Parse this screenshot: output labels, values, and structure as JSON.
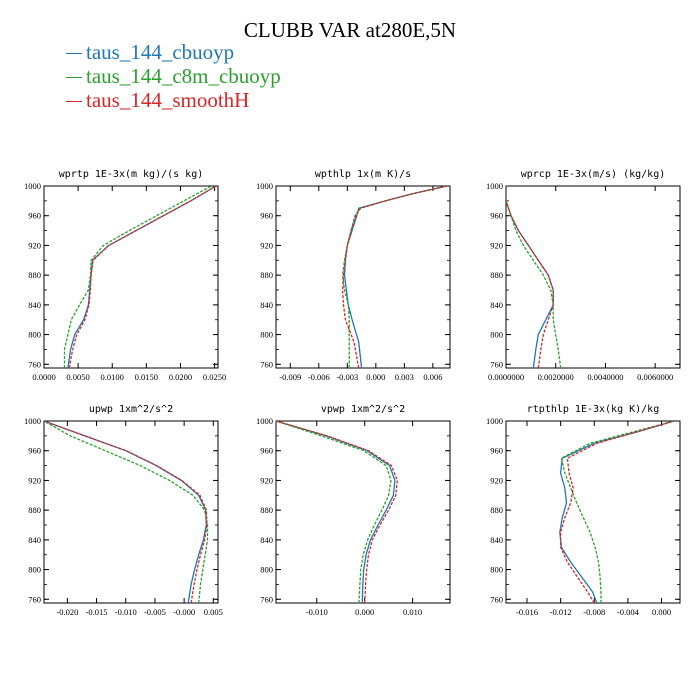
{
  "title": "CLUBB VAR at280E,5N",
  "legend": [
    {
      "label": "taus_144_cbuoyp",
      "color": "#1f77b4"
    },
    {
      "label": "taus_144_c8m_cbuoyp",
      "color": "#2ca02c"
    },
    {
      "label": "taus_144_smoothH",
      "color": "#d62728"
    }
  ],
  "chart_data": [
    {
      "type": "line",
      "title": "wprtp  1E-3x(m kg)/(s kg)",
      "xlim": [
        0.0,
        0.0255
      ],
      "ylim": [
        1000,
        755
      ],
      "xticks": [
        0.0,
        0.005,
        0.01,
        0.015,
        0.02,
        0.025
      ],
      "xticklabels": [
        "0.0000",
        "0.0050",
        "0.0100",
        "0.0150",
        "0.0200",
        "0.0250"
      ],
      "yticks": [
        760,
        800,
        840,
        880,
        920,
        960,
        1000
      ],
      "yticklabels": [
        "760",
        "800",
        "840",
        "880",
        "920",
        "960",
        "1000"
      ],
      "series": [
        {
          "color": "#1f77b4",
          "dash": false,
          "y": [
            755,
            780,
            800,
            820,
            840,
            860,
            880,
            900,
            920,
            940,
            960,
            980,
            1000
          ],
          "x": [
            0.0035,
            0.0039,
            0.0045,
            0.0058,
            0.0065,
            0.0067,
            0.0069,
            0.0071,
            0.0095,
            0.0135,
            0.0175,
            0.0215,
            0.0252
          ]
        },
        {
          "color": "#2ca02c",
          "dash": true,
          "y": [
            755,
            780,
            800,
            820,
            840,
            860,
            880,
            900,
            920,
            940,
            960,
            980,
            1000
          ],
          "x": [
            0.003,
            0.003,
            0.0035,
            0.004,
            0.0052,
            0.0065,
            0.0068,
            0.0069,
            0.0087,
            0.0125,
            0.0165,
            0.0205,
            0.0245
          ]
        },
        {
          "color": "#d62728",
          "dash": true,
          "y": [
            755,
            780,
            800,
            820,
            840,
            860,
            880,
            900,
            920,
            940,
            960,
            980,
            1000
          ],
          "x": [
            0.0037,
            0.0042,
            0.0048,
            0.006,
            0.0066,
            0.0068,
            0.0069,
            0.0072,
            0.0095,
            0.0135,
            0.0175,
            0.0215,
            0.0252
          ]
        }
      ]
    },
    {
      "type": "line",
      "title": "wpthlp  1x(m K)/s",
      "xlim": [
        -0.0105,
        0.0078
      ],
      "ylim": [
        1000,
        755
      ],
      "xticks": [
        -0.009,
        -0.006,
        -0.003,
        0.0,
        0.003,
        0.006
      ],
      "xticklabels": [
        "-0.009",
        "-0.006",
        "-0.003",
        "0.000",
        "0.003",
        "0.006"
      ],
      "yticks": [
        760,
        800,
        840,
        880,
        920,
        960,
        1000
      ],
      "yticklabels": [
        "760",
        "800",
        "840",
        "880",
        "920",
        "960",
        "1000"
      ],
      "series": [
        {
          "color": "#1f77b4",
          "dash": false,
          "y": [
            755,
            790,
            820,
            840,
            860,
            880,
            900,
            920,
            940,
            960,
            970,
            980,
            990,
            1000
          ],
          "x": [
            -0.0015,
            -0.0018,
            -0.0025,
            -0.0029,
            -0.0031,
            -0.0033,
            -0.0032,
            -0.003,
            -0.0025,
            -0.002,
            -0.0018,
            0.001,
            0.004,
            0.0075
          ]
        },
        {
          "color": "#2ca02c",
          "dash": true,
          "y": [
            755,
            790,
            820,
            840,
            860,
            880,
            900,
            920,
            940,
            960,
            970,
            980,
            990,
            1000
          ],
          "x": [
            -0.0028,
            -0.0028,
            -0.0028,
            -0.0029,
            -0.0033,
            -0.0035,
            -0.0033,
            -0.003,
            -0.0026,
            -0.0022,
            -0.0017,
            0.001,
            0.004,
            0.0075
          ]
        },
        {
          "color": "#d62728",
          "dash": true,
          "y": [
            755,
            790,
            820,
            840,
            860,
            880,
            900,
            920,
            940,
            960,
            970,
            980,
            990,
            1000
          ],
          "x": [
            -0.0018,
            -0.0023,
            -0.0032,
            -0.0034,
            -0.0035,
            -0.0034,
            -0.0032,
            -0.003,
            -0.0026,
            -0.0021,
            -0.0016,
            0.001,
            0.004,
            0.0075
          ]
        }
      ]
    },
    {
      "type": "line",
      "title": "wprcp  1E-3x(m/s) (kg/kg)",
      "xlim": [
        0.0,
        0.007
      ],
      "ylim": [
        1000,
        755
      ],
      "xticks": [
        0.0,
        0.002,
        0.004,
        0.006
      ],
      "xticklabels": [
        "0.0000000",
        "0.0020000",
        "0.0040000",
        "0.0060000"
      ],
      "yticks": [
        760,
        800,
        840,
        880,
        920,
        960,
        1000
      ],
      "yticklabels": [
        "760",
        "800",
        "840",
        "880",
        "920",
        "960",
        "1000"
      ],
      "series": [
        {
          "color": "#1f77b4",
          "dash": false,
          "y": [
            755,
            780,
            800,
            820,
            840,
            860,
            880,
            900,
            920,
            940,
            960,
            980,
            1000
          ],
          "x": [
            0.0011,
            0.0012,
            0.0013,
            0.0016,
            0.0019,
            0.0019,
            0.0017,
            0.0013,
            0.0009,
            0.0005,
            0.0002,
            0.0,
            0.0
          ]
        },
        {
          "color": "#2ca02c",
          "dash": true,
          "y": [
            755,
            780,
            800,
            820,
            840,
            860,
            880,
            900,
            920,
            940,
            960,
            980,
            1000
          ],
          "x": [
            0.0022,
            0.0021,
            0.002,
            0.0019,
            0.0019,
            0.0018,
            0.0015,
            0.0011,
            0.0007,
            0.0004,
            0.0002,
            0.0,
            0.0
          ]
        },
        {
          "color": "#d62728",
          "dash": true,
          "y": [
            755,
            780,
            800,
            820,
            840,
            860,
            880,
            900,
            920,
            940,
            960,
            980,
            1000
          ],
          "x": [
            0.0013,
            0.0014,
            0.0015,
            0.0017,
            0.0019,
            0.0019,
            0.0017,
            0.0013,
            0.0009,
            0.0005,
            0.0002,
            0.0,
            0.0
          ]
        }
      ]
    },
    {
      "type": "line",
      "title": "upwp  1xm^2/s^2",
      "xlim": [
        -0.024,
        0.0058
      ],
      "ylim": [
        1000,
        755
      ],
      "xticks": [
        -0.02,
        -0.015,
        -0.01,
        -0.005,
        0.0,
        0.005
      ],
      "xticklabels": [
        "-0.020",
        "-0.015",
        "-0.010",
        "-0.005",
        "-0.000",
        "0.005"
      ],
      "yticks": [
        760,
        800,
        840,
        880,
        920,
        960,
        1000
      ],
      "yticklabels": [
        "760",
        "800",
        "840",
        "880",
        "920",
        "960",
        "1000"
      ],
      "series": [
        {
          "color": "#1f77b4",
          "dash": false,
          "y": [
            755,
            780,
            800,
            820,
            840,
            860,
            880,
            900,
            920,
            940,
            960,
            980,
            1000
          ],
          "x": [
            0.0007,
            0.0012,
            0.0018,
            0.0025,
            0.0033,
            0.0038,
            0.0037,
            0.0025,
            -0.0005,
            -0.0048,
            -0.01,
            -0.017,
            -0.024
          ]
        },
        {
          "color": "#2ca02c",
          "dash": true,
          "y": [
            755,
            780,
            800,
            820,
            840,
            860,
            880,
            900,
            920,
            940,
            960,
            980,
            1000
          ],
          "x": [
            0.0025,
            0.0028,
            0.0032,
            0.0036,
            0.004,
            0.004,
            0.0035,
            0.0015,
            -0.0025,
            -0.0075,
            -0.0135,
            -0.0195,
            -0.024
          ]
        },
        {
          "color": "#d62728",
          "dash": true,
          "y": [
            755,
            780,
            800,
            820,
            840,
            860,
            880,
            900,
            920,
            940,
            960,
            980,
            1000
          ],
          "x": [
            0.0012,
            0.0017,
            0.0022,
            0.0028,
            0.0035,
            0.0039,
            0.0038,
            0.0027,
            -0.0004,
            -0.0047,
            -0.0099,
            -0.017,
            -0.024
          ]
        }
      ]
    },
    {
      "type": "line",
      "title": "vpwp  1xm^2/s^2",
      "xlim": [
        -0.0185,
        0.0178
      ],
      "ylim": [
        1000,
        755
      ],
      "xticks": [
        -0.01,
        0.0,
        0.01
      ],
      "xticklabels": [
        "-0.010",
        "0.000",
        "0.010"
      ],
      "yticks": [
        760,
        800,
        840,
        880,
        920,
        960,
        1000
      ],
      "yticklabels": [
        "760",
        "800",
        "840",
        "880",
        "920",
        "960",
        "1000"
      ],
      "series": [
        {
          "color": "#1f77b4",
          "dash": false,
          "y": [
            755,
            780,
            800,
            820,
            840,
            860,
            880,
            900,
            920,
            940,
            960,
            980,
            1000
          ],
          "x": [
            -0.0005,
            -0.0004,
            -0.0002,
            0.0003,
            0.0012,
            0.0028,
            0.0045,
            0.006,
            0.0063,
            0.0052,
            0.0005,
            -0.008,
            -0.0185
          ]
        },
        {
          "color": "#2ca02c",
          "dash": true,
          "y": [
            755,
            780,
            800,
            820,
            840,
            860,
            880,
            900,
            920,
            940,
            960,
            980,
            1000
          ],
          "x": [
            -0.0012,
            -0.001,
            -0.0008,
            -0.0003,
            0.0006,
            0.002,
            0.0036,
            0.005,
            0.0055,
            0.0045,
            -0.0002,
            -0.009,
            -0.0185
          ]
        },
        {
          "color": "#d62728",
          "dash": true,
          "y": [
            755,
            780,
            800,
            820,
            840,
            860,
            880,
            900,
            920,
            940,
            960,
            980,
            1000
          ],
          "x": [
            0.0,
            0.0002,
            0.0004,
            0.0008,
            0.0016,
            0.0032,
            0.005,
            0.0065,
            0.0068,
            0.0056,
            0.0008,
            -0.0078,
            -0.0185
          ]
        }
      ]
    },
    {
      "type": "line",
      "title": "rtpthlp  1E-3x(kg K)/kg",
      "xlim": [
        -0.0185,
        0.0022
      ],
      "ylim": [
        1000,
        755
      ],
      "xticks": [
        -0.016,
        -0.012,
        -0.008,
        -0.004,
        0.0
      ],
      "xticklabels": [
        "-0.016",
        "-0.012",
        "-0.008",
        "-0.004",
        "0.000"
      ],
      "yticks": [
        760,
        800,
        840,
        880,
        920,
        960,
        1000
      ],
      "yticklabels": [
        "760",
        "800",
        "840",
        "880",
        "920",
        "960",
        "1000"
      ],
      "series": [
        {
          "color": "#1f77b4",
          "dash": false,
          "y": [
            755,
            770,
            790,
            810,
            830,
            850,
            870,
            890,
            910,
            930,
            950,
            970,
            985,
            1000
          ],
          "x": [
            -0.0077,
            -0.0082,
            -0.0095,
            -0.0108,
            -0.0119,
            -0.0121,
            -0.0118,
            -0.0113,
            -0.0115,
            -0.012,
            -0.0118,
            -0.008,
            -0.003,
            0.0015
          ]
        },
        {
          "color": "#2ca02c",
          "dash": true,
          "y": [
            755,
            770,
            790,
            810,
            830,
            850,
            870,
            890,
            910,
            930,
            950,
            970,
            985,
            1000
          ],
          "x": [
            -0.0072,
            -0.0072,
            -0.0073,
            -0.0075,
            -0.0079,
            -0.0085,
            -0.0093,
            -0.0101,
            -0.0108,
            -0.0115,
            -0.0119,
            -0.0085,
            -0.0035,
            0.0015
          ]
        },
        {
          "color": "#d62728",
          "dash": true,
          "y": [
            755,
            770,
            790,
            810,
            830,
            850,
            870,
            890,
            910,
            930,
            950,
            970,
            985,
            1000
          ],
          "x": [
            -0.008,
            -0.0088,
            -0.01,
            -0.0112,
            -0.012,
            -0.012,
            -0.0115,
            -0.0108,
            -0.0105,
            -0.011,
            -0.0112,
            -0.0077,
            -0.003,
            0.0015
          ]
        }
      ]
    }
  ]
}
